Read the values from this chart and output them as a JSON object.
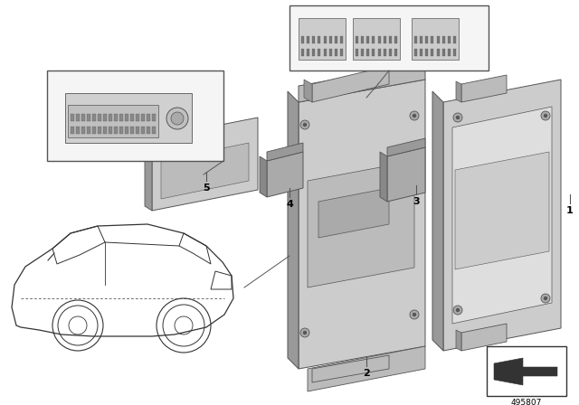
{
  "background_color": "#ffffff",
  "fig_width": 6.4,
  "fig_height": 4.48,
  "dpi": 100,
  "part_number": "495807",
  "dark": "#444444",
  "mid": "#888888",
  "light": "#bbbbbb",
  "lighter": "#cccccc",
  "lightest": "#dedede",
  "shadow": "#999999",
  "edge": "#555555",
  "callout_bg": "#f5f5f5",
  "callout_edge": "#555555"
}
